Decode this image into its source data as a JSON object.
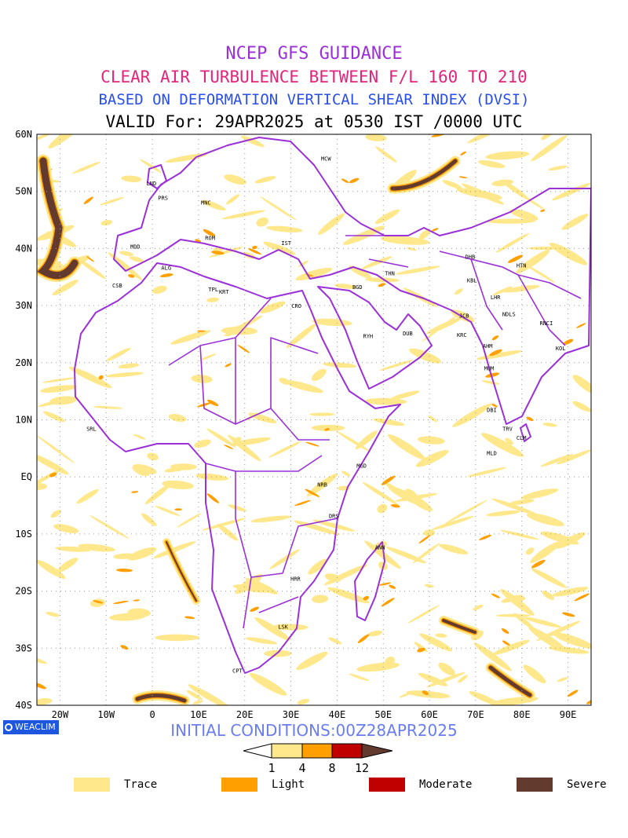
{
  "titles": {
    "line1": "NCEP GFS GUIDANCE",
    "line2": "CLEAR AIR TURBULENCE BETWEEN F/L 160 TO 210",
    "line3": "BASED ON DEFORMATION VERTICAL SHEAR INDEX (DVSI)",
    "line4": "VALID For: 29APR2025 at 0530 IST /0000 UTC"
  },
  "axes": {
    "lat_labels": [
      "60N",
      "50N",
      "40N",
      "30N",
      "20N",
      "10N",
      "EQ",
      "10S",
      "20S",
      "30S",
      "40S"
    ],
    "lon_labels": [
      "20W",
      "10W",
      "0",
      "10E",
      "20E",
      "30E",
      "40E",
      "50E",
      "60E",
      "70E",
      "80E",
      "90E"
    ],
    "lat_range": [
      -40,
      60
    ],
    "lon_range": [
      -25,
      95
    ]
  },
  "stations": [
    {
      "code": "LND",
      "lon": -0.2,
      "lat": 51.5
    },
    {
      "code": "PRS",
      "lon": 2.3,
      "lat": 48.9
    },
    {
      "code": "MNC",
      "lon": 11.6,
      "lat": 48.1
    },
    {
      "code": "MCW",
      "lon": 37.6,
      "lat": 55.8
    },
    {
      "code": "MDD",
      "lon": -3.7,
      "lat": 40.4
    },
    {
      "code": "ROM",
      "lon": 12.5,
      "lat": 41.9
    },
    {
      "code": "IST",
      "lon": 29.0,
      "lat": 41.0
    },
    {
      "code": "ALG",
      "lon": 3.0,
      "lat": 36.7
    },
    {
      "code": "CSB",
      "lon": -7.6,
      "lat": 33.6
    },
    {
      "code": "TPL",
      "lon": 13.2,
      "lat": 32.9
    },
    {
      "code": "KRT",
      "lon": 15.5,
      "lat": 32.5
    },
    {
      "code": "CRO",
      "lon": 31.2,
      "lat": 30.0
    },
    {
      "code": "BGD",
      "lon": 44.4,
      "lat": 33.3
    },
    {
      "code": "THN",
      "lon": 51.4,
      "lat": 35.7
    },
    {
      "code": "RYH",
      "lon": 46.7,
      "lat": 24.7
    },
    {
      "code": "DUB",
      "lon": 55.3,
      "lat": 25.2
    },
    {
      "code": "DHB",
      "lon": 68.8,
      "lat": 38.6
    },
    {
      "code": "KBL",
      "lon": 69.2,
      "lat": 34.5
    },
    {
      "code": "HTN",
      "lon": 79.9,
      "lat": 37.1
    },
    {
      "code": "LHR",
      "lon": 74.3,
      "lat": 31.5
    },
    {
      "code": "JCB",
      "lon": 67.5,
      "lat": 28.3
    },
    {
      "code": "NDLS",
      "lon": 77.2,
      "lat": 28.6
    },
    {
      "code": "KRC",
      "lon": 67.0,
      "lat": 24.9
    },
    {
      "code": "AHM",
      "lon": 72.6,
      "lat": 23.0
    },
    {
      "code": "RNCI",
      "lon": 85.3,
      "lat": 27.0
    },
    {
      "code": "KOL",
      "lon": 88.4,
      "lat": 22.6
    },
    {
      "code": "MUM",
      "lon": 72.9,
      "lat": 19.1
    },
    {
      "code": "DBI",
      "lon": 73.5,
      "lat": 11.8
    },
    {
      "code": "TRV",
      "lon": 76.9,
      "lat": 8.5
    },
    {
      "code": "CLM",
      "lon": 79.9,
      "lat": 6.9
    },
    {
      "code": "MLD",
      "lon": 73.5,
      "lat": 4.2
    },
    {
      "code": "SRL",
      "lon": -13.2,
      "lat": 8.5
    },
    {
      "code": "MGD",
      "lon": 45.3,
      "lat": 2.0
    },
    {
      "code": "NRB",
      "lon": 36.8,
      "lat": -1.3
    },
    {
      "code": "DRS",
      "lon": 39.3,
      "lat": -6.8
    },
    {
      "code": "ANN",
      "lon": 49.3,
      "lat": -12.3
    },
    {
      "code": "HRR",
      "lon": 31.0,
      "lat": -17.8
    },
    {
      "code": "LSK",
      "lon": 28.3,
      "lat": -26.2
    },
    {
      "code": "CPT",
      "lon": 18.4,
      "lat": -33.9
    }
  ],
  "colors": {
    "trace": "#ffe88c",
    "light": "#ff9f00",
    "moderate": "#c00000",
    "severe": "#633a2e",
    "border": "#9b30d9"
  },
  "colorbar": {
    "ticks": [
      "1",
      "4",
      "8",
      "12"
    ]
  },
  "legend": [
    {
      "label": "Trace",
      "color": "#ffe88c"
    },
    {
      "label": "Light",
      "color": "#ff9f00"
    },
    {
      "label": "Moderate",
      "color": "#c00000"
    },
    {
      "label": "Severe",
      "color": "#633a2e"
    }
  ],
  "footer": {
    "initial_conditions": "INITIAL CONDITIONS:00Z28APR2025",
    "logo_text": "WEACLIM"
  }
}
